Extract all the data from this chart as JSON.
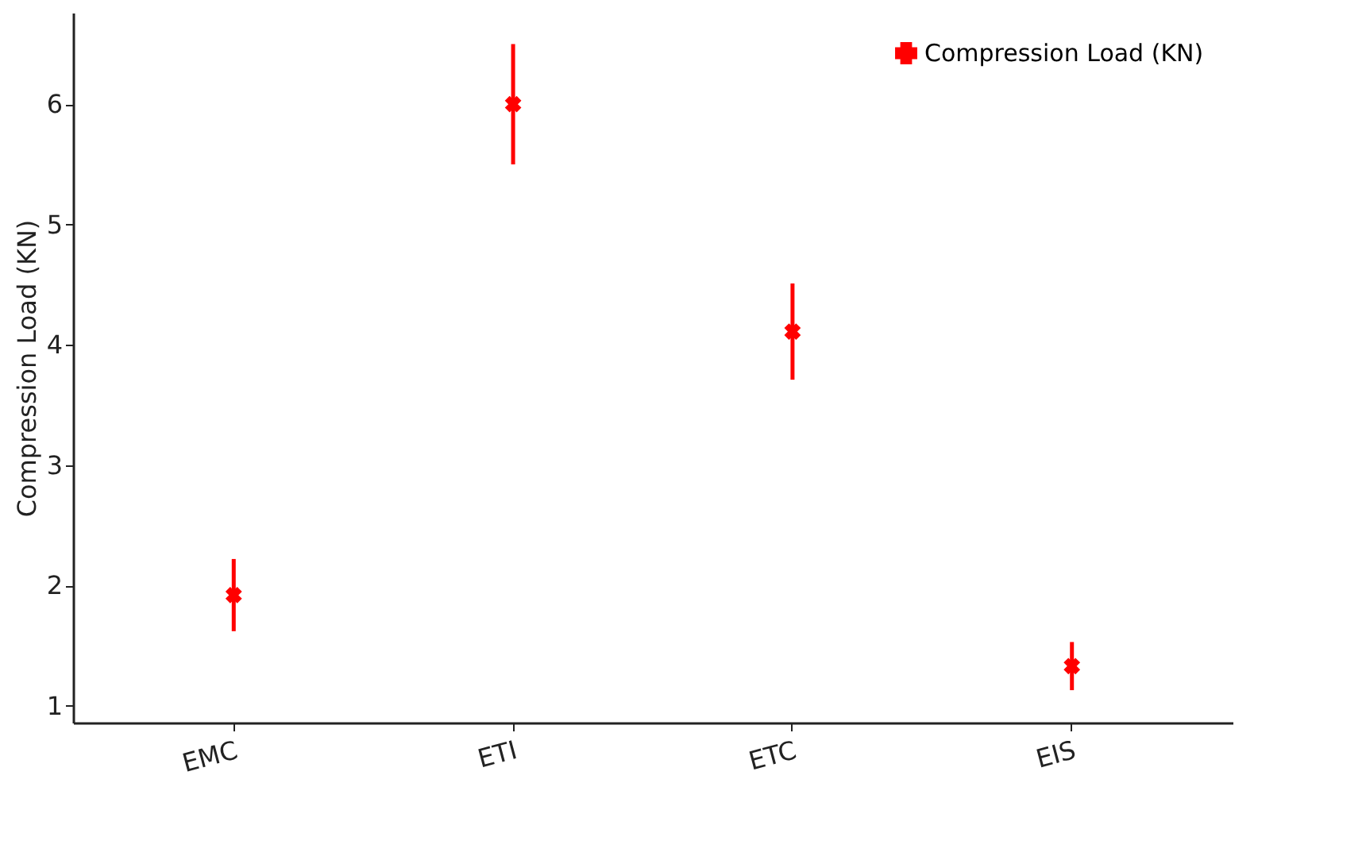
{
  "chart_data": {
    "type": "scatter",
    "ylabel": "Compression Load (KN)",
    "categories": [
      "EMC",
      "ETI",
      "ETC",
      "EIS"
    ],
    "series": [
      {
        "name": "Compression Load (KN)",
        "color": "#ff0000",
        "values": [
          1.92,
          6.0,
          4.11,
          1.33
        ],
        "errors": [
          0.3,
          0.5,
          0.4,
          0.2
        ]
      }
    ],
    "ylim": [
      0.86,
      6.76
    ],
    "yticks": [
      1,
      2,
      3,
      4,
      5,
      6
    ],
    "grid": false,
    "legend": "top right",
    "marker": "cross"
  }
}
